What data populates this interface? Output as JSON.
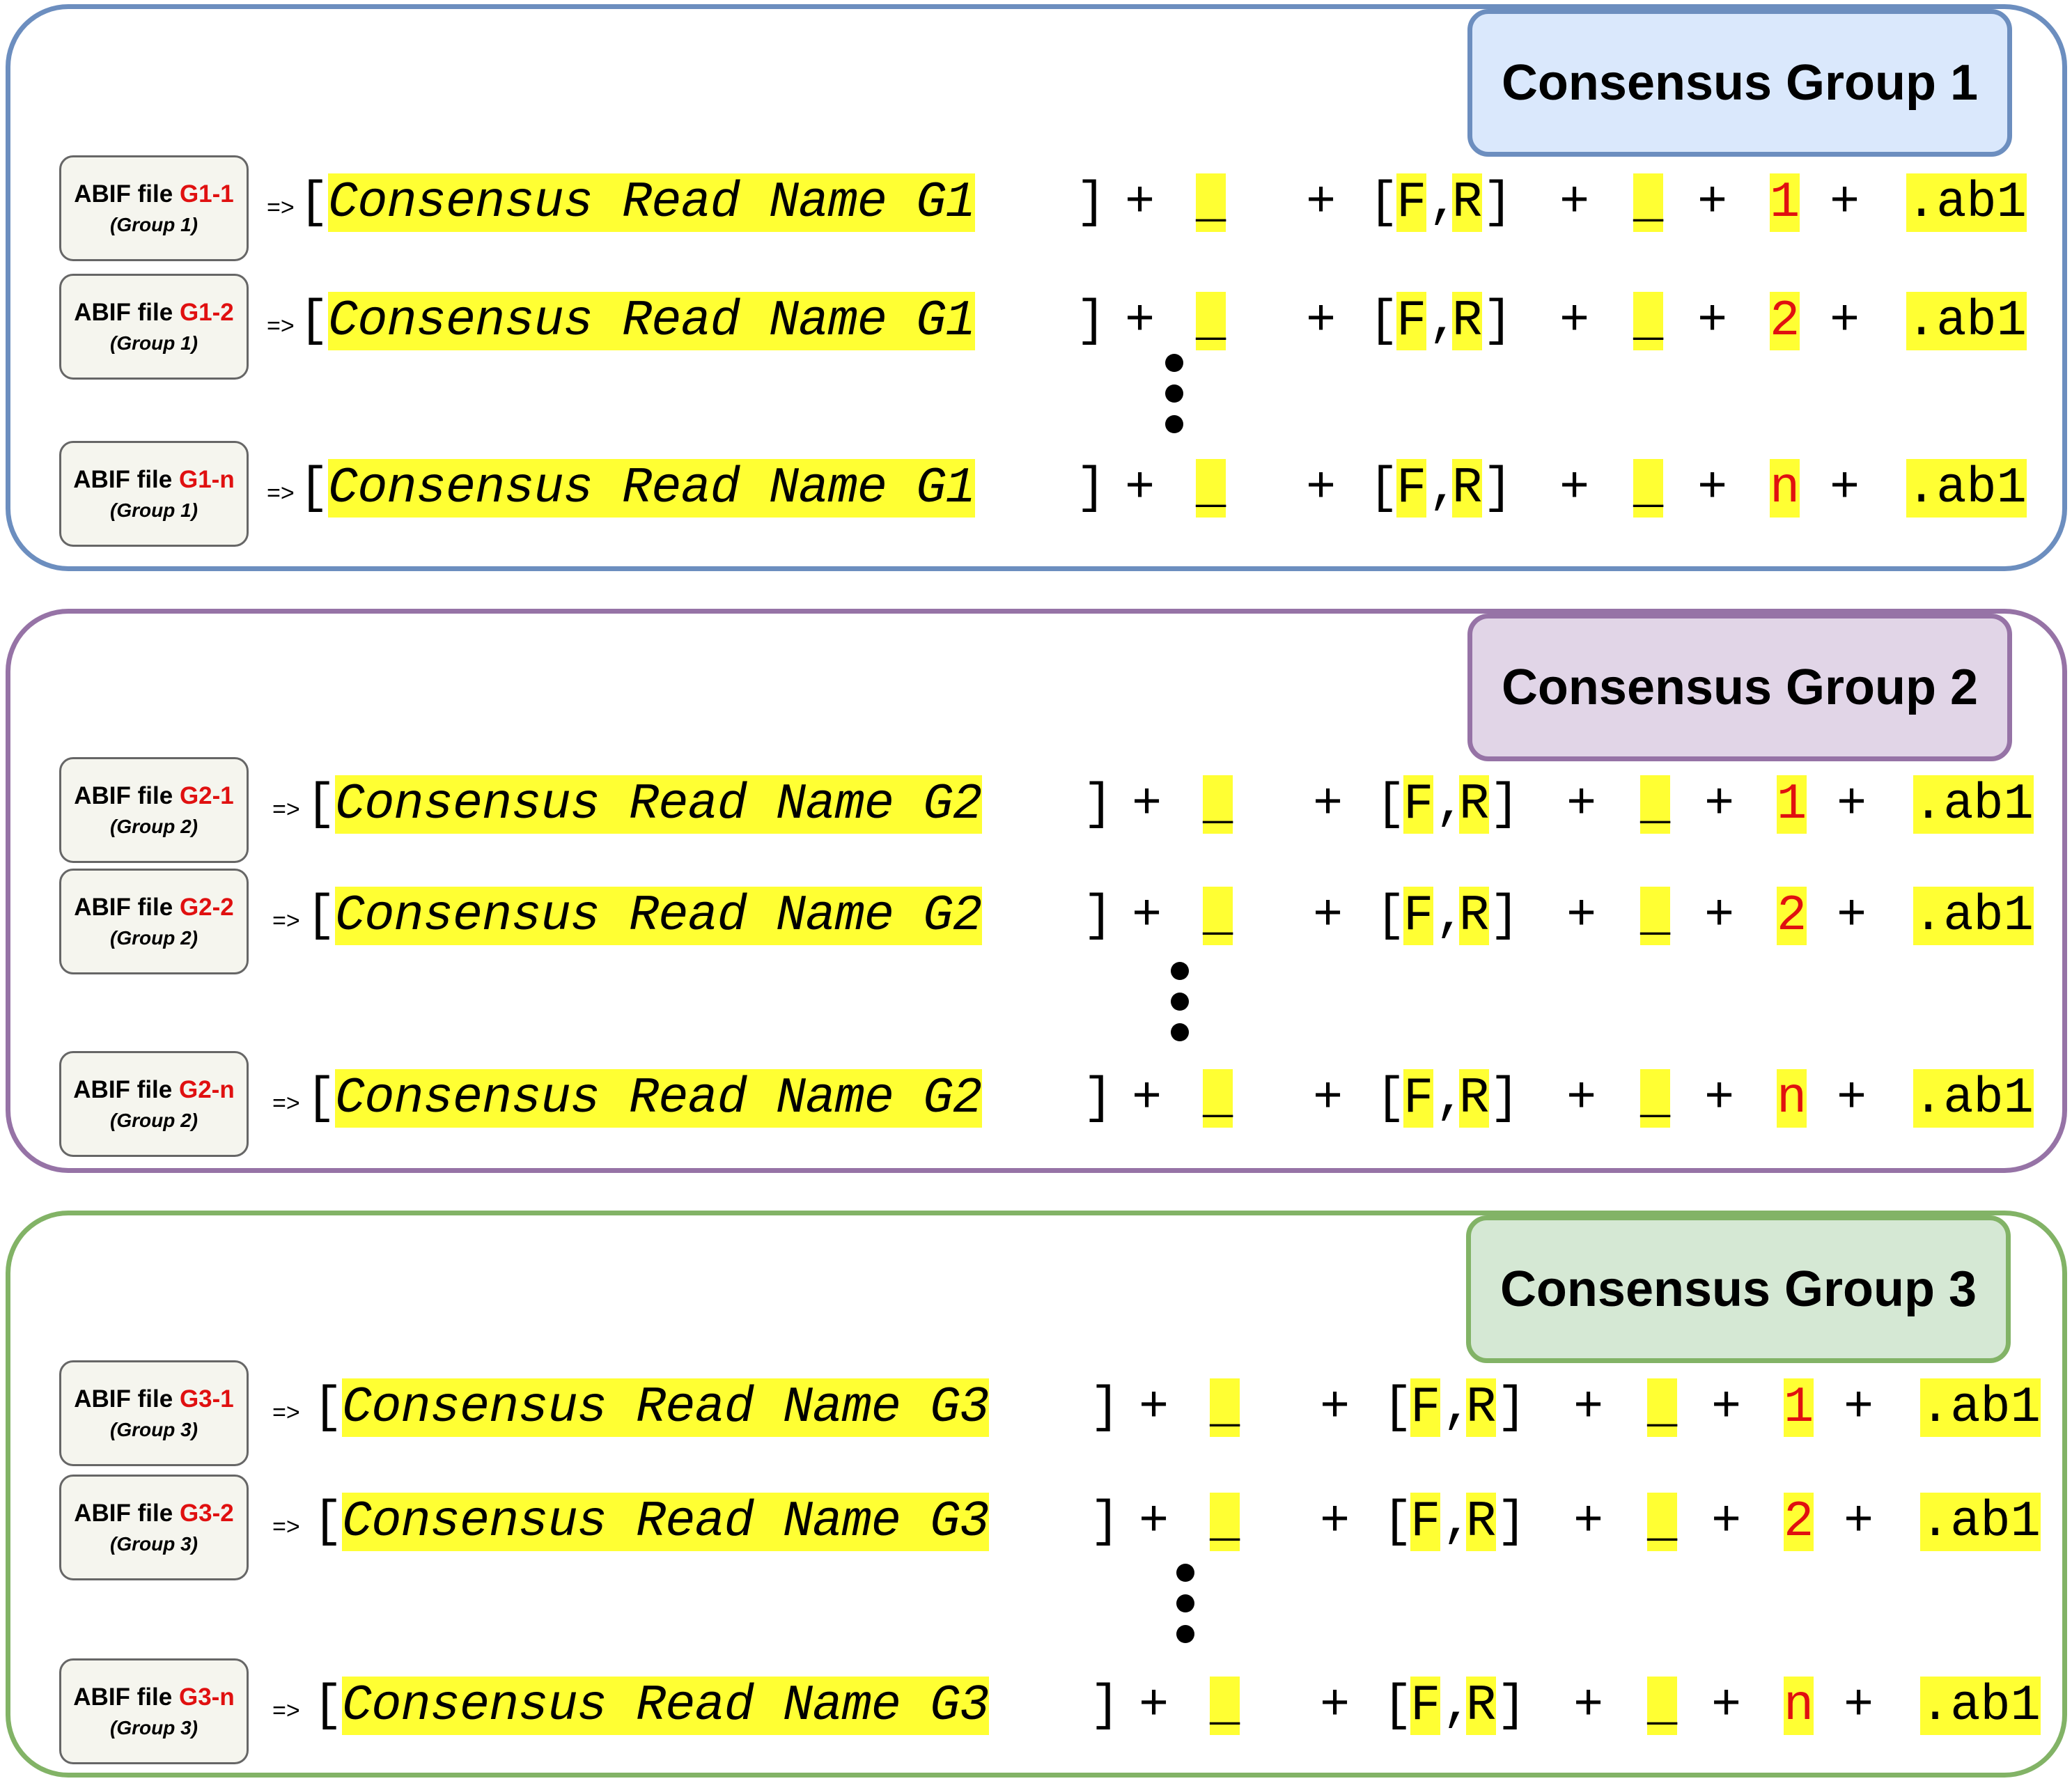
{
  "groups": [
    {
      "title": "Consensus Group 1",
      "rows": [
        {
          "file_prefix": "ABIF file",
          "file_id": "G1-1",
          "group_label": "(Group 1)",
          "arrow": "=>",
          "read_name": "Consensus Read Name G1",
          "index": "1"
        },
        {
          "file_prefix": "ABIF file",
          "file_id": "G1-2",
          "group_label": "(Group 1)",
          "arrow": "=>",
          "read_name": "Consensus Read Name G1",
          "index": "2"
        },
        {
          "file_prefix": "ABIF file",
          "file_id": "G1-n",
          "group_label": "(Group 1)",
          "arrow": "=>",
          "read_name": "Consensus Read Name G1",
          "index": "n"
        }
      ]
    },
    {
      "title": "Consensus Group 2",
      "rows": [
        {
          "file_prefix": "ABIF file",
          "file_id": "G2-1",
          "group_label": "(Group 2)",
          "arrow": "=>",
          "read_name": "Consensus Read Name G2",
          "index": "1"
        },
        {
          "file_prefix": "ABIF file",
          "file_id": "G2-2",
          "group_label": "(Group 2)",
          "arrow": "=>",
          "read_name": "Consensus Read Name G2",
          "index": "2"
        },
        {
          "file_prefix": "ABIF file",
          "file_id": "G2-n",
          "group_label": "(Group 2)",
          "arrow": "=>",
          "read_name": "Consensus Read Name G2",
          "index": "n"
        }
      ]
    },
    {
      "title": "Consensus Group 3",
      "rows": [
        {
          "file_prefix": "ABIF file",
          "file_id": "G3-1",
          "group_label": "(Group 3)",
          "arrow": "=>",
          "read_name": "Consensus Read Name G3",
          "index": "1"
        },
        {
          "file_prefix": "ABIF file",
          "file_id": "G3-2",
          "group_label": "(Group 3)",
          "arrow": "=>",
          "read_name": "Consensus Read Name G3",
          "index": "2"
        },
        {
          "file_prefix": "ABIF file",
          "file_id": "G3-n",
          "group_label": "(Group 3)",
          "arrow": "=>",
          "read_name": "Consensus Read Name G3",
          "index": "n"
        }
      ]
    }
  ],
  "formula": {
    "open_bracket": "[",
    "close_bracket": "]",
    "plus": "+",
    "underscore": "_",
    "direction_open": "[",
    "direction_f": "F",
    "direction_sep": ",",
    "direction_r": "R",
    "direction_close": "]",
    "extension": ".ab1"
  },
  "colors": {
    "group1_border": "#6c8ebf",
    "group1_fill": "#dae8fc",
    "group2_border": "#9673a6",
    "group2_fill": "#e1d5e7",
    "group3_border": "#82b366",
    "group3_fill": "#d5e8d4",
    "highlight": "#ffff33",
    "id_red": "#e01010"
  }
}
